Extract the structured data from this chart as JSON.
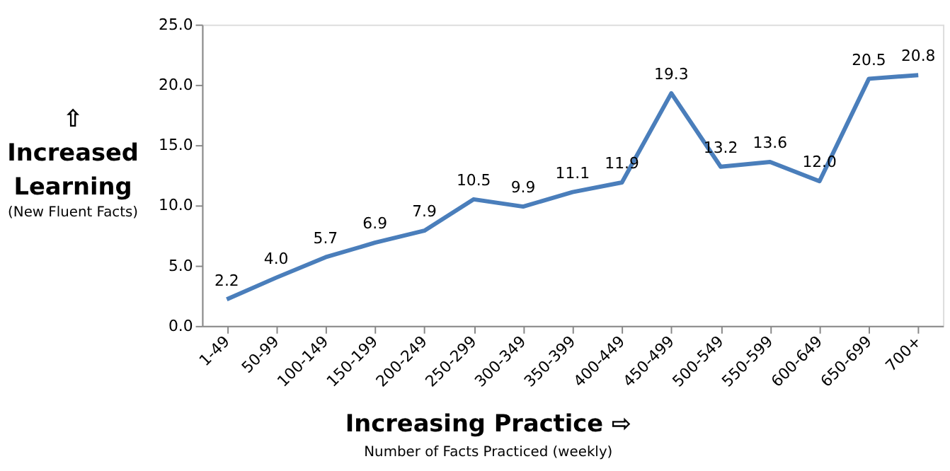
{
  "chart_data": {
    "type": "line",
    "categories": [
      "1-49",
      "50-99",
      "100-149",
      "150-199",
      "200-249",
      "250-299",
      "300-349",
      "350-399",
      "400-449",
      "450-499",
      "500-549",
      "550-599",
      "600-649",
      "650-699",
      "700+"
    ],
    "series": [
      {
        "color": "#4a7ebb",
        "values": [
          2.2,
          4.0,
          5.7,
          6.9,
          7.9,
          10.5,
          9.9,
          11.1,
          11.9,
          19.3,
          13.2,
          13.6,
          12.0,
          20.5,
          20.8
        ],
        "value_labels": [
          "2.2",
          "4.0",
          "5.7",
          "6.9",
          "7.9",
          "10.5",
          "9.9",
          "11.1",
          "11.9",
          "19.3",
          "13.2",
          "13.6",
          "12.0",
          "20.5",
          "20.8"
        ]
      }
    ],
    "ylim": [
      0,
      25
    ],
    "yticks": [
      {
        "value": 0,
        "label": "0.0"
      },
      {
        "value": 5,
        "label": "5.0"
      },
      {
        "value": 10,
        "label": "10.0"
      },
      {
        "value": 15,
        "label": "15.0"
      },
      {
        "value": 20,
        "label": "20.0"
      },
      {
        "value": 25,
        "label": "25.0"
      }
    ],
    "ylabel": "⇧ Increased Learning",
    "xlabel": "Increasing Practice ⇨",
    "annotations": [
      "(New Fluent Facts)",
      "Number of Facts Practiced (weekly)"
    ],
    "grid": false,
    "marker": "none",
    "line_style": "solid"
  }
}
